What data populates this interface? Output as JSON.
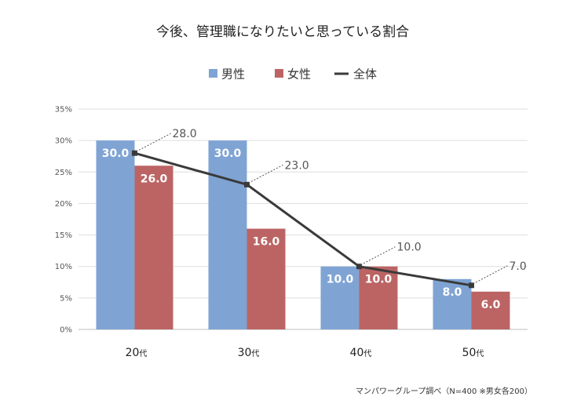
{
  "chart_data": {
    "type": "bar",
    "title": "今後、管理職になりたいと思っている割合",
    "categories": [
      "20",
      "30",
      "40",
      "50"
    ],
    "category_suffix": "代",
    "series": [
      {
        "name": "男性",
        "kind": "bar",
        "color": "#7FA4D4",
        "values": [
          30.0,
          30.0,
          10.0,
          8.0
        ],
        "labels": [
          "30.0",
          "30.0",
          "10.0",
          "8.0"
        ]
      },
      {
        "name": "女性",
        "kind": "bar",
        "color": "#BC6464",
        "values": [
          26.0,
          16.0,
          10.0,
          6.0
        ],
        "labels": [
          "26.0",
          "16.0",
          "10.0",
          "6.0"
        ]
      },
      {
        "name": "全体",
        "kind": "line",
        "color": "#3A3A3A",
        "values": [
          28.0,
          23.0,
          10.0,
          7.0
        ],
        "labels": [
          "28.0",
          "23.0",
          "10.0",
          "7.0"
        ]
      }
    ],
    "ylim": [
      0,
      35
    ],
    "yticks": [
      "0%",
      "5%",
      "10%",
      "15%",
      "20%",
      "25%",
      "30%",
      "35%"
    ],
    "grid": true,
    "legend_position": "top-center",
    "xlabel": "",
    "ylabel": "",
    "source_note": "マンパワーグループ調べ（N=400 ※男女各200）"
  }
}
